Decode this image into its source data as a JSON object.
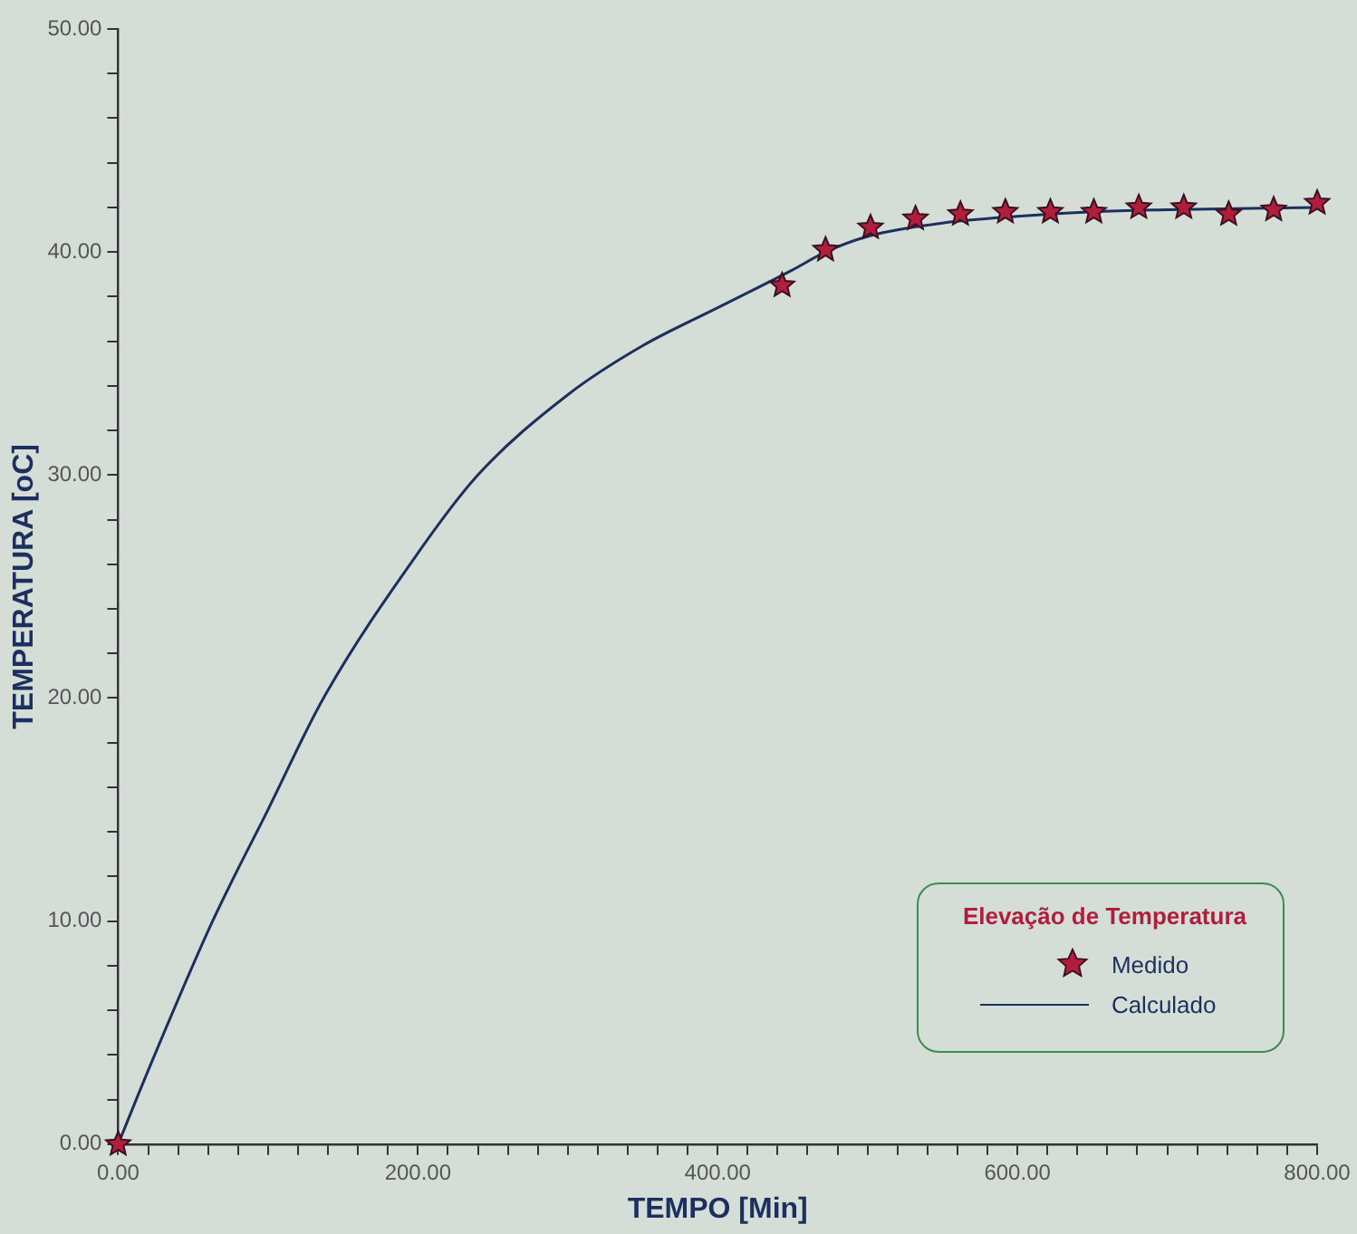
{
  "chart_data": {
    "type": "line",
    "xlabel": "TEMPO [Min]",
    "ylabel": "TEMPERATURA [oC]",
    "legend_title": "Elevação de Temperatura",
    "legend": "bottom right",
    "grid": false,
    "xlim": [
      0,
      800
    ],
    "ylim": [
      0,
      50
    ],
    "xticks": [
      {
        "value": 0,
        "label": "0.00"
      },
      {
        "value": 20,
        "label": null
      },
      {
        "value": 40,
        "label": null
      },
      {
        "value": 60,
        "label": null
      },
      {
        "value": 80,
        "label": null
      },
      {
        "value": 100,
        "label": null
      },
      {
        "value": 120,
        "label": null
      },
      {
        "value": 140,
        "label": null
      },
      {
        "value": 160,
        "label": null
      },
      {
        "value": 180,
        "label": null
      },
      {
        "value": 200,
        "label": "200.00"
      },
      {
        "value": 220,
        "label": null
      },
      {
        "value": 240,
        "label": null
      },
      {
        "value": 260,
        "label": null
      },
      {
        "value": 280,
        "label": null
      },
      {
        "value": 300,
        "label": null
      },
      {
        "value": 320,
        "label": null
      },
      {
        "value": 340,
        "label": null
      },
      {
        "value": 360,
        "label": null
      },
      {
        "value": 380,
        "label": null
      },
      {
        "value": 400,
        "label": "400.00"
      },
      {
        "value": 420,
        "label": null
      },
      {
        "value": 440,
        "label": null
      },
      {
        "value": 460,
        "label": null
      },
      {
        "value": 480,
        "label": null
      },
      {
        "value": 500,
        "label": null
      },
      {
        "value": 520,
        "label": null
      },
      {
        "value": 540,
        "label": null
      },
      {
        "value": 560,
        "label": null
      },
      {
        "value": 580,
        "label": null
      },
      {
        "value": 600,
        "label": "600.00"
      },
      {
        "value": 620,
        "label": null
      },
      {
        "value": 640,
        "label": null
      },
      {
        "value": 660,
        "label": null
      },
      {
        "value": 680,
        "label": null
      },
      {
        "value": 700,
        "label": null
      },
      {
        "value": 720,
        "label": null
      },
      {
        "value": 740,
        "label": null
      },
      {
        "value": 760,
        "label": null
      },
      {
        "value": 780,
        "label": null
      },
      {
        "value": 800,
        "label": "800.00"
      }
    ],
    "yticks": [
      {
        "value": 0,
        "label": "0.00"
      },
      {
        "value": 2,
        "label": null
      },
      {
        "value": 4,
        "label": null
      },
      {
        "value": 6,
        "label": null
      },
      {
        "value": 8,
        "label": null
      },
      {
        "value": 10,
        "label": "10.00"
      },
      {
        "value": 12,
        "label": null
      },
      {
        "value": 14,
        "label": null
      },
      {
        "value": 16,
        "label": null
      },
      {
        "value": 18,
        "label": null
      },
      {
        "value": 20,
        "label": "20.00"
      },
      {
        "value": 22,
        "label": null
      },
      {
        "value": 24,
        "label": null
      },
      {
        "value": 26,
        "label": null
      },
      {
        "value": 28,
        "label": null
      },
      {
        "value": 30,
        "label": "30.00"
      },
      {
        "value": 32,
        "label": null
      },
      {
        "value": 34,
        "label": null
      },
      {
        "value": 36,
        "label": null
      },
      {
        "value": 38,
        "label": null
      },
      {
        "value": 40,
        "label": "40.00"
      },
      {
        "value": 42,
        "label": null
      },
      {
        "value": 44,
        "label": null
      },
      {
        "value": 46,
        "label": null
      },
      {
        "value": 48,
        "label": null
      },
      {
        "value": 50,
        "label": "50.00"
      }
    ],
    "series": [
      {
        "name": "Medido",
        "type": "scatter",
        "marker": "star",
        "color": "#b01e3c",
        "x": [
          0,
          443,
          472,
          502,
          532,
          562,
          592,
          622,
          651,
          681,
          711,
          741,
          771,
          800
        ],
        "values": [
          0,
          38.5,
          40.1,
          41.1,
          41.5,
          41.7,
          41.8,
          41.8,
          41.8,
          42.0,
          42.0,
          41.7,
          41.9,
          42.2
        ]
      },
      {
        "name": "Calculado",
        "type": "line",
        "marker": "none",
        "line_style": "solid",
        "color": "#1c2f5e",
        "x": [
          0,
          20,
          63,
          100,
          137,
          200,
          240,
          300,
          350,
          400,
          450,
          472,
          500,
          550,
          600,
          650,
          700,
          800
        ],
        "values": [
          0,
          3.3,
          10,
          15,
          20,
          26.5,
          30,
          33.6,
          35.8,
          37.5,
          39.2,
          40,
          40.7,
          41.3,
          41.6,
          41.8,
          41.9,
          42.0
        ]
      }
    ]
  }
}
